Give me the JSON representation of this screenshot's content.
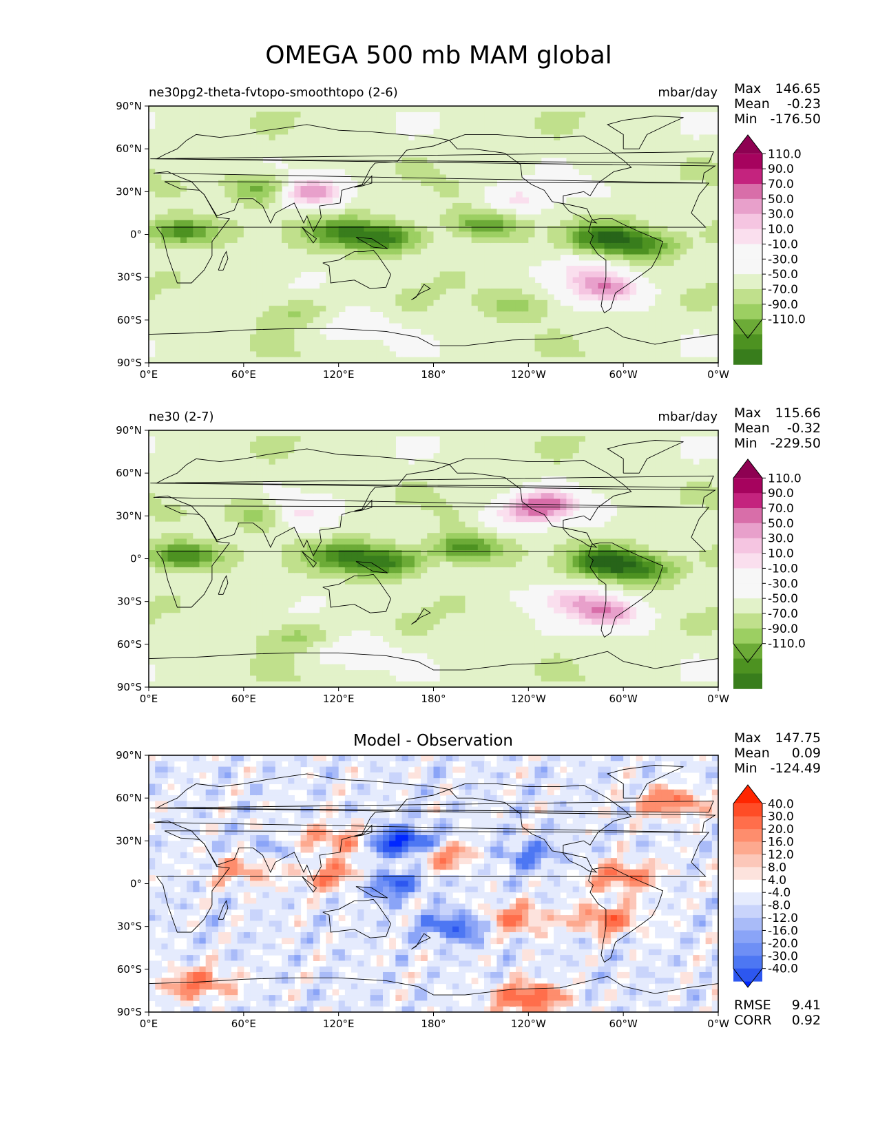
{
  "figure_title": "OMEGA 500 mb MAM global",
  "x_ticks": [
    "0°E",
    "60°E",
    "120°E",
    "180°",
    "120°W",
    "60°W",
    "0°W"
  ],
  "y_ticks": [
    "90°N",
    "60°N",
    "30°N",
    "0°",
    "30°S",
    "60°S",
    "90°S"
  ],
  "colors": {
    "test_cmap": [
      "#276419",
      "#387d1c",
      "#4d9221",
      "#6cab37",
      "#9ccf62",
      "#c0e08c",
      "#e2f2c9",
      "#f7f7f7",
      "#f7f7f7",
      "#fadfee",
      "#f5c5e1",
      "#e8a0cb",
      "#d86ea9",
      "#c4237e",
      "#a6035e",
      "#8e0152"
    ],
    "diff_cmap": [
      "#0027ff",
      "#2d57f0",
      "#4d77f3",
      "#6e8ff5",
      "#8aa4f7",
      "#a9bbf8",
      "#c9d4fb",
      "#e5ebfd",
      "#ffffff",
      "#fde3dd",
      "#fcc7b9",
      "#fda98f",
      "#fe8d6d",
      "#ff6e4b",
      "#ff4c26",
      "#ff2600"
    ],
    "coast": "#000000"
  },
  "panels": [
    {
      "subtitle_left": "ne30pg2-theta-fvtopo-smoothtopo (2-6)",
      "units": "mbar/day",
      "stats": {
        "max_label": "Max",
        "max": "146.65",
        "mean_label": "Mean",
        "mean": "-0.23",
        "min_label": "Min",
        "min": "-176.50"
      },
      "colorbar_labels": [
        "110.0",
        "90.0",
        "70.0",
        "50.0",
        "30.0",
        "10.0",
        "-10.0",
        "-30.0",
        "-50.0",
        "-70.0",
        "-90.0",
        "-110.0"
      ]
    },
    {
      "subtitle_left": "ne30 (2-7)",
      "units": "mbar/day",
      "stats": {
        "max_label": "Max",
        "max": "115.66",
        "mean_label": "Mean",
        "mean": "-0.32",
        "min_label": "Min",
        "min": "-229.50"
      },
      "colorbar_labels": [
        "110.0",
        "90.0",
        "70.0",
        "50.0",
        "30.0",
        "10.0",
        "-10.0",
        "-30.0",
        "-50.0",
        "-70.0",
        "-90.0",
        "-110.0"
      ]
    },
    {
      "title_center": "Model - Observation",
      "stats": {
        "max_label": "Max",
        "max": "147.75",
        "mean_label": "Mean",
        "mean": "0.09",
        "min_label": "Min",
        "min": "-124.49"
      },
      "colorbar_labels": [
        "40.0",
        "30.0",
        "20.0",
        "16.0",
        "12.0",
        "8.0",
        "4.0",
        "-4.0",
        "-8.0",
        "-12.0",
        "-16.0",
        "-20.0",
        "-30.0",
        "-40.0"
      ],
      "rmse_label": "RMSE",
      "rmse": "9.41",
      "corr_label": "CORR",
      "corr": "0.92"
    }
  ],
  "chart_data": [
    {
      "type": "heatmap",
      "title": "ne30pg2-theta-fvtopo-smoothtopo (2-6)",
      "variable": "OMEGA 500 mb",
      "season": "MAM",
      "units": "mbar/day",
      "xlabel": "longitude",
      "ylabel": "latitude",
      "xlim": [
        0,
        360
      ],
      "ylim": [
        -90,
        90
      ],
      "levels": [
        -110,
        -90,
        -70,
        -50,
        -30,
        -10,
        10,
        30,
        50,
        70,
        90,
        110
      ],
      "max": 146.65,
      "mean": -0.23,
      "min": -176.5,
      "features": [
        {
          "lon": 20,
          "lat": 2,
          "value": -90
        },
        {
          "lon": 125,
          "lat": 2,
          "value": -80
        },
        {
          "lon": 150,
          "lat": -3,
          "value": -90
        },
        {
          "lon": 210,
          "lat": 7,
          "value": -70
        },
        {
          "lon": 290,
          "lat": -2,
          "value": -100
        },
        {
          "lon": 315,
          "lat": -8,
          "value": -70
        },
        {
          "lon": 100,
          "lat": 30,
          "value": 110
        },
        {
          "lon": 75,
          "lat": 32,
          "value": -80
        },
        {
          "lon": 235,
          "lat": 25,
          "value": 50
        },
        {
          "lon": 270,
          "lat": -25,
          "value": 50
        },
        {
          "lon": 290,
          "lat": -38,
          "value": 100
        },
        {
          "lon": 235,
          "lat": -50,
          "value": -40
        },
        {
          "lon": 90,
          "lat": -55,
          "value": -35
        },
        {
          "lon": 130,
          "lat": -65,
          "value": 40
        }
      ]
    },
    {
      "type": "heatmap",
      "title": "ne30 (2-7)",
      "variable": "OMEGA 500 mb",
      "season": "MAM",
      "units": "mbar/day",
      "xlabel": "longitude",
      "ylabel": "latitude",
      "xlim": [
        0,
        360
      ],
      "ylim": [
        -90,
        90
      ],
      "levels": [
        -110,
        -90,
        -70,
        -50,
        -30,
        -10,
        10,
        30,
        50,
        70,
        90,
        110
      ],
      "max": 115.66,
      "mean": -0.32,
      "min": -229.5,
      "features": [
        {
          "lon": 20,
          "lat": 2,
          "value": -100
        },
        {
          "lon": 125,
          "lat": 2,
          "value": -80
        },
        {
          "lon": 150,
          "lat": -3,
          "value": -90
        },
        {
          "lon": 200,
          "lat": 7,
          "value": -90
        },
        {
          "lon": 290,
          "lat": -2,
          "value": -110
        },
        {
          "lon": 315,
          "lat": -8,
          "value": -70
        },
        {
          "lon": 90,
          "lat": 32,
          "value": 80
        },
        {
          "lon": 75,
          "lat": 32,
          "value": -80
        },
        {
          "lon": 235,
          "lat": 30,
          "value": 50
        },
        {
          "lon": 250,
          "lat": 38,
          "value": 110
        },
        {
          "lon": 265,
          "lat": -28,
          "value": 70
        },
        {
          "lon": 290,
          "lat": -38,
          "value": 100
        },
        {
          "lon": 90,
          "lat": -55,
          "value": -40
        },
        {
          "lon": 130,
          "lat": -66,
          "value": 50
        }
      ]
    },
    {
      "type": "heatmap",
      "title": "Model - Observation",
      "variable": "OMEGA 500 mb",
      "season": "MAM",
      "units": "mbar/day",
      "xlabel": "longitude",
      "ylabel": "latitude",
      "xlim": [
        0,
        360
      ],
      "ylim": [
        -90,
        90
      ],
      "levels": [
        -40,
        -30,
        -20,
        -16,
        -12,
        -8,
        -4,
        4,
        8,
        12,
        16,
        20,
        30,
        40
      ],
      "max": 147.75,
      "mean": 0.09,
      "min": -124.49,
      "rmse": 9.41,
      "corr": 0.92,
      "features": [
        {
          "lon": 90,
          "lat": 30,
          "value": 40
        },
        {
          "lon": 85,
          "lat": 28,
          "value": -40
        },
        {
          "lon": 130,
          "lat": 30,
          "value": 30
        },
        {
          "lon": 165,
          "lat": 27,
          "value": -30
        },
        {
          "lon": 150,
          "lat": 30,
          "value": -30
        },
        {
          "lon": 185,
          "lat": 20,
          "value": 30
        },
        {
          "lon": 150,
          "lat": 0,
          "value": -30
        },
        {
          "lon": 240,
          "lat": 20,
          "value": -20
        },
        {
          "lon": 330,
          "lat": 57,
          "value": 30
        },
        {
          "lon": 300,
          "lat": 5,
          "value": 30
        },
        {
          "lon": 290,
          "lat": -25,
          "value": 30
        },
        {
          "lon": 195,
          "lat": -30,
          "value": -30
        },
        {
          "lon": 230,
          "lat": -25,
          "value": 30
        },
        {
          "lon": 60,
          "lat": 10,
          "value": 20
        },
        {
          "lon": 120,
          "lat": 5,
          "value": 30
        },
        {
          "lon": 240,
          "lat": -80,
          "value": 40
        },
        {
          "lon": 30,
          "lat": -70,
          "value": 30
        }
      ]
    }
  ]
}
